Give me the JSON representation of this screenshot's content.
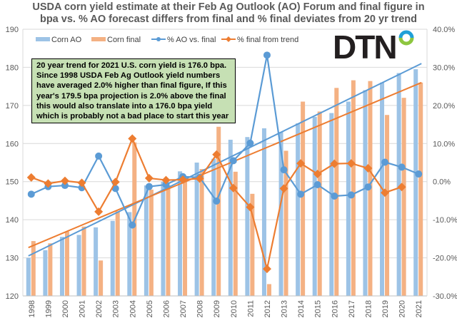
{
  "chart_data": {
    "type": "bar",
    "title": "USDA corn yield estimate at their Feb Ag Outlook (AO) Forum and final figure in bpa vs. % AO forecast differs from final and % final deviates from 20 yr trend",
    "categories": [
      "1998",
      "1999",
      "2000",
      "2001",
      "2002",
      "2003",
      "2004",
      "2005",
      "2006",
      "2007",
      "2008",
      "2009",
      "2010",
      "2011",
      "2012",
      "2013",
      "2014",
      "2015",
      "2016",
      "2017",
      "2018",
      "2019",
      "2020",
      "2021"
    ],
    "left_axis": {
      "min": 120,
      "max": 190,
      "step": 10,
      "ticks": [
        "120",
        "130",
        "140",
        "150",
        "160",
        "170",
        "180",
        "190"
      ]
    },
    "right_axis": {
      "min": -30,
      "max": 40,
      "step": 10,
      "ticks": [
        "-30.0%",
        "-20.0%",
        "-10.0%",
        "0.0%",
        "10.0%",
        "20.0%",
        "30.0%",
        "40.0%"
      ]
    },
    "grid": true,
    "legend_position": "top",
    "series": [
      {
        "name": "Corn AO",
        "kind": "bar",
        "axis": "left",
        "color": "#9dc3e6",
        "values": [
          130.0,
          132.0,
          135.5,
          136.0,
          138.0,
          139.7,
          142.0,
          149.0,
          150.0,
          152.7,
          155.0,
          156.0,
          161.0,
          161.7,
          164.0,
          163.0,
          165.3,
          167.0,
          168.0,
          171.0,
          174.0,
          176.0,
          178.5,
          179.5
        ]
      },
      {
        "name": "Corn final",
        "kind": "bar",
        "axis": "left",
        "color": "#f4b183",
        "values": [
          134.4,
          133.8,
          136.9,
          138.2,
          129.3,
          142.2,
          160.3,
          147.9,
          149.1,
          150.7,
          153.3,
          164.4,
          152.6,
          146.8,
          123.1,
          158.1,
          171.0,
          168.4,
          174.6,
          176.6,
          176.4,
          167.5,
          172.0,
          176.0
        ]
      },
      {
        "name": "% AO vs. final",
        "kind": "line",
        "axis": "right",
        "color": "#5b9bd5",
        "marker": "circle",
        "values": [
          -3.3,
          -1.3,
          -1.0,
          -1.6,
          6.7,
          -1.8,
          -11.4,
          -1.3,
          -0.8,
          1.3,
          1.1,
          -5.1,
          5.5,
          10.1,
          33.2,
          3.1,
          -3.3,
          -0.8,
          -3.8,
          -3.5,
          -1.4,
          5.1,
          3.8,
          2.0
        ]
      },
      {
        "name": "% final from trend",
        "kind": "line",
        "axis": "right",
        "color": "#ed7d31",
        "marker": "diamond",
        "values": [
          1.1,
          -0.5,
          0.2,
          -0.3,
          -7.9,
          -0.1,
          11.3,
          0.9,
          0.4,
          0.5,
          0.8,
          7.1,
          -1.7,
          -6.7,
          -22.9,
          -1.8,
          4.8,
          2.0,
          4.7,
          4.8,
          3.5,
          -2.9,
          -1.4,
          null
        ]
      },
      {
        "name": "Corn AO trend",
        "kind": "trendline",
        "axis": "left",
        "color": "#5b9bd5",
        "from": 130.5,
        "to": 181.0
      },
      {
        "name": "Corn final trend",
        "kind": "trendline",
        "axis": "left",
        "color": "#ed7d31",
        "from": 132.7,
        "to": 176.0
      }
    ],
    "annotations": [
      "20 year trend for 2021 U.S. corn yield is 176.0 bpa. Since 1998 USDA Feb Ag Outlook yield numbers have averaged 2.0% higher than final figure, If this year's 179.5 bpa projection is 2.0% above the final this would also translate into a 176.0 bpa yield which is probably not a bad place to start this year"
    ],
    "xlabel": "",
    "ylabel": "",
    "y2label": ""
  },
  "title_lines": [
    "USDA corn yield estimate at their Feb Ag Outlook (AO) Forum and final figure in",
    "bpa vs. % AO forecast differs from final and % final deviates from 20 yr trend"
  ],
  "note_lines": [
    "20 year trend for 2021 U.S. corn yield is 176.0 bpa.",
    "Since 1998 USDA Feb Ag Outlook yield numbers",
    "have averaged 2.0% higher than final figure, If this",
    "year's 179.5 bpa projection is 2.0% above the final",
    "this would also translate into a 176.0 bpa yield",
    "which is probably not a bad place to start this year"
  ],
  "logo": {
    "text": "DTN",
    "ring_colors": [
      "#1fa0d8",
      "#8dc63f"
    ]
  }
}
